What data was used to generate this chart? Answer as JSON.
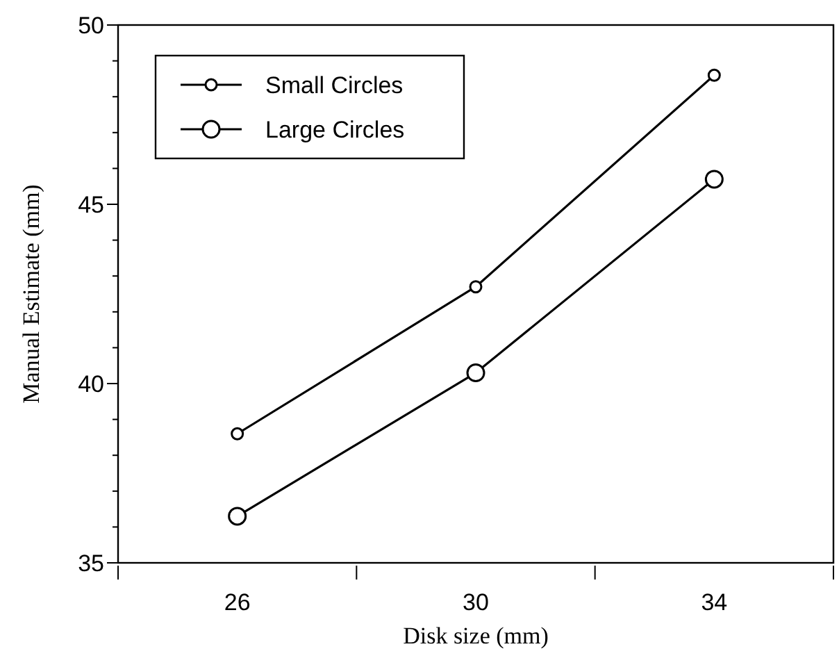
{
  "chart_data": {
    "type": "line",
    "xlabel": "Disk size (mm)",
    "ylabel": "Manual Estimate (mm)",
    "categories": [
      "26",
      "30",
      "34"
    ],
    "ylim": [
      35,
      50
    ],
    "yticks": [
      35,
      {
        "value": 36,
        "label": null
      },
      {
        "value": 37,
        "label": null
      },
      {
        "value": 38,
        "label": null
      },
      {
        "value": 39,
        "label": null
      },
      40,
      {
        "value": 41,
        "label": null
      },
      {
        "value": 42,
        "label": null
      },
      {
        "value": 43,
        "label": null
      },
      {
        "value": 44,
        "label": null
      },
      45,
      {
        "value": 46,
        "label": null
      },
      {
        "value": 47,
        "label": null
      },
      {
        "value": 48,
        "label": null
      },
      {
        "value": 49,
        "label": null
      },
      50
    ],
    "series": [
      {
        "name": "Small Circles",
        "color": "#000000",
        "values": [
          38.6,
          42.7,
          48.6
        ]
      },
      {
        "name": "Large Circles",
        "color": "#000000",
        "values": [
          36.3,
          40.3,
          45.7
        ]
      }
    ],
    "marker": "circle",
    "line_style": "solid",
    "legend": "top left",
    "grid": false
  }
}
